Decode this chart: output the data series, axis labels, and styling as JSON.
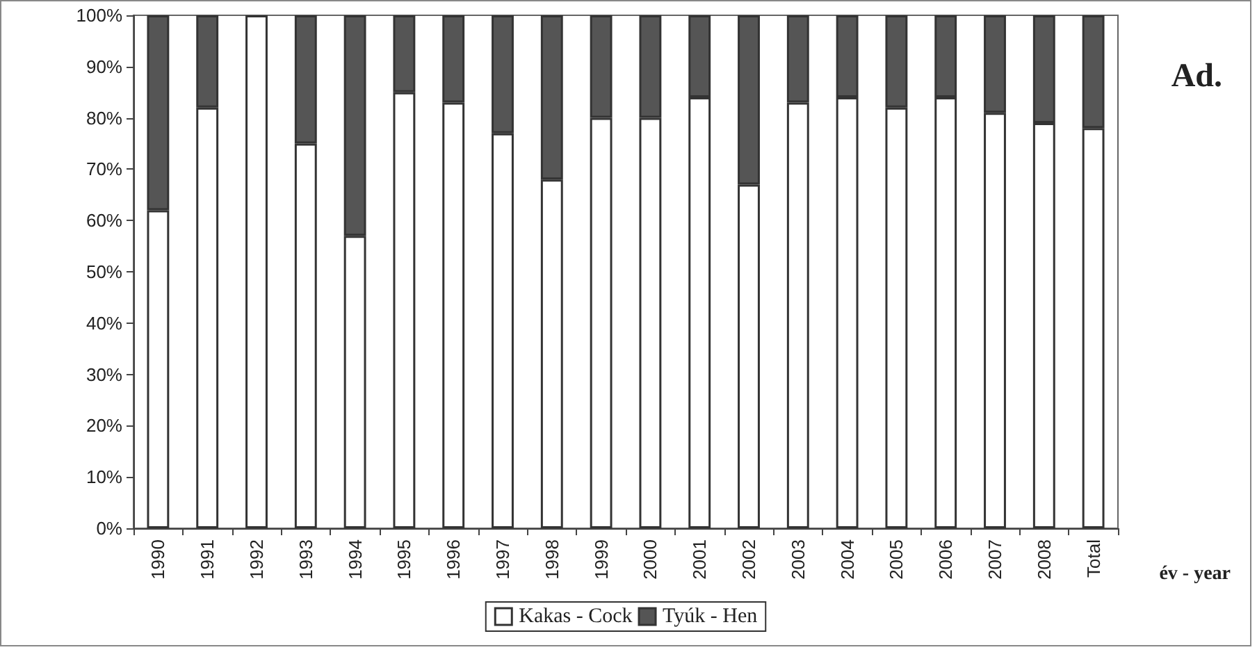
{
  "chart_data": {
    "type": "bar",
    "stacked": true,
    "categories": [
      "1990",
      "1991",
      "1992",
      "1993",
      "1994",
      "1995",
      "1996",
      "1997",
      "1998",
      "1999",
      "2000",
      "2001",
      "2002",
      "2003",
      "2004",
      "2005",
      "2006",
      "2007",
      "2008",
      "Total"
    ],
    "series": [
      {
        "name": "Kakas - Cock",
        "color": "#ffffff",
        "values": [
          62,
          82,
          100,
          75,
          57,
          85,
          83,
          77,
          68,
          80,
          80,
          84,
          67,
          83,
          84,
          82,
          84,
          81,
          79,
          78
        ]
      },
      {
        "name": "Tyúk - Hen",
        "color": "#555555",
        "values": [
          38,
          18,
          0,
          25,
          43,
          15,
          17,
          23,
          32,
          20,
          20,
          16,
          33,
          17,
          16,
          18,
          16,
          19,
          21,
          22
        ]
      }
    ],
    "ylim": [
      0,
      100
    ],
    "yticks": [
      {
        "value": 0,
        "label": "0%"
      },
      {
        "value": 10,
        "label": "10%"
      },
      {
        "value": 20,
        "label": "20%"
      },
      {
        "value": 30,
        "label": "30%"
      },
      {
        "value": 40,
        "label": "40%"
      },
      {
        "value": 50,
        "label": "50%"
      },
      {
        "value": 60,
        "label": "60%"
      },
      {
        "value": 70,
        "label": "70%"
      },
      {
        "value": 80,
        "label": "80%"
      },
      {
        "value": 90,
        "label": "90%"
      },
      {
        "value": 100,
        "label": "100%"
      }
    ],
    "xlabel": "év - year",
    "annotations": [
      "Ad."
    ],
    "grid": false,
    "legend": "bottom"
  }
}
